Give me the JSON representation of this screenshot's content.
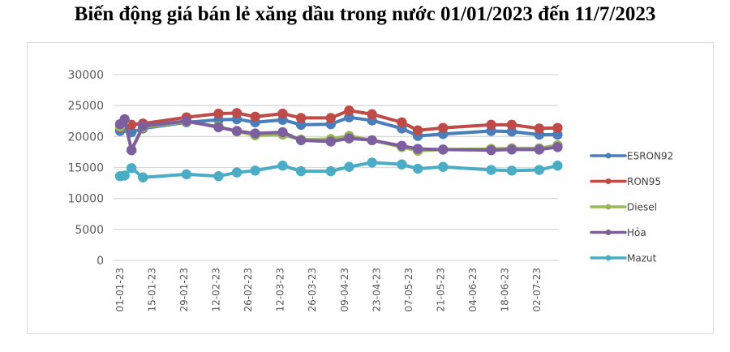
{
  "title": "Biến động giá bán lẻ xăng dầu trong nước 01/01/2023 đến 11/7/2023",
  "chart_data": {
    "type": "line",
    "title": "Biến động giá bán lẻ xăng dầu trong nước 01/01/2023 đến 11/7/2023",
    "xlabel": "",
    "ylabel": "",
    "ylim": [
      0,
      30000
    ],
    "yticks": [
      0,
      5000,
      10000,
      15000,
      20000,
      25000,
      30000
    ],
    "xtick_labels": [
      "01-01-23",
      "15-01-23",
      "29-01-23",
      "12-02-23",
      "26-02-23",
      "12-03-23",
      "26-03-23",
      "09-04-23",
      "23-04-23",
      "07-05-23",
      "21-05-23",
      "04-06-23",
      "18-06-23",
      "02-07-23"
    ],
    "grid": true,
    "legend_position": "right",
    "x": [
      "01-01-23",
      "03-01-23",
      "06-01-23",
      "11-01-23",
      "30-01-23",
      "13-02-23",
      "21-02-23",
      "01-03-23",
      "13-03-23",
      "21-03-23",
      "03-04-23",
      "11-04-23",
      "21-04-23",
      "04-05-23",
      "11-05-23",
      "22-05-23",
      "12-06-23",
      "21-06-23",
      "03-07-23",
      "11-07-23"
    ],
    "series": [
      {
        "name": "E5RON92",
        "color": "#4a7ebb",
        "values": [
          20900,
          21400,
          20700,
          21300,
          22300,
          22700,
          22800,
          22300,
          22700,
          21900,
          22000,
          23100,
          22600,
          21300,
          20100,
          20400,
          20900,
          20800,
          20300,
          20300
        ]
      },
      {
        "name": "RON95",
        "color": "#be4b48",
        "values": [
          21500,
          22000,
          21900,
          22100,
          23100,
          23700,
          23800,
          23200,
          23700,
          23000,
          23000,
          24200,
          23600,
          22300,
          21000,
          21400,
          21900,
          21900,
          21300,
          21400
        ]
      },
      {
        "name": "Diesel",
        "color": "#98b954",
        "values": [
          21600,
          22600,
          17800,
          21500,
          22400,
          21600,
          20800,
          20200,
          20300,
          19500,
          19600,
          20100,
          19400,
          18300,
          17700,
          17900,
          18000,
          18100,
          18100,
          18600
        ]
      },
      {
        "name": "Hỏa",
        "color": "#7d5fa0",
        "values": [
          22000,
          22800,
          17800,
          21700,
          22500,
          21500,
          20900,
          20500,
          20700,
          19400,
          19200,
          19700,
          19400,
          18500,
          18000,
          17900,
          17800,
          17900,
          17900,
          18300
        ]
      },
      {
        "name": "Mazut",
        "color": "#4bacc6",
        "values": [
          13600,
          13700,
          14900,
          13400,
          13900,
          13600,
          14200,
          14500,
          15300,
          14400,
          14400,
          15100,
          15800,
          15500,
          14800,
          15100,
          14600,
          14500,
          14600,
          15300
        ]
      }
    ]
  },
  "legend": [
    {
      "label": "E5RON92",
      "color": "#4a7ebb"
    },
    {
      "label": "RON95",
      "color": "#be4b48"
    },
    {
      "label": "Diesel",
      "color": "#98b954"
    },
    {
      "label": "Hỏa",
      "color": "#7d5fa0"
    },
    {
      "label": "Mazut",
      "color": "#4bacc6"
    }
  ]
}
